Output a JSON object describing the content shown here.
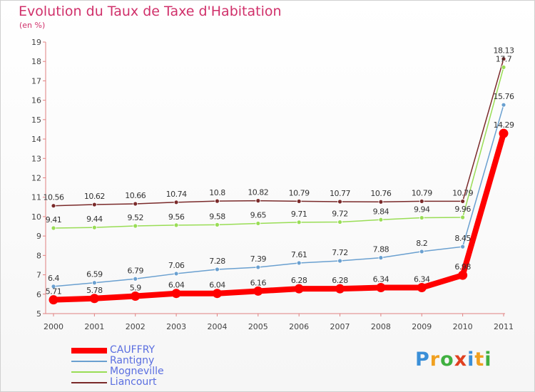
{
  "title": "Evolution du Taux de Taxe d'Habitation",
  "subtitle": "(en %)",
  "chart_data": {
    "type": "line",
    "x": [
      "2000",
      "2001",
      "2002",
      "2003",
      "2004",
      "2005",
      "2006",
      "2007",
      "2008",
      "2009",
      "2010",
      "2011"
    ],
    "ylim": [
      5,
      19
    ],
    "yticks": [
      5,
      6,
      7,
      8,
      9,
      10,
      11,
      12,
      13,
      14,
      15,
      16,
      17,
      18,
      19
    ],
    "grid": false,
    "legend_position": "bottom-left",
    "series": [
      {
        "name": "CAUFFRY",
        "color": "#ff0000",
        "values": [
          5.71,
          5.78,
          5.9,
          6.04,
          6.04,
          6.16,
          6.28,
          6.28,
          6.34,
          6.34,
          6.98,
          14.29
        ],
        "labels": [
          "5.71",
          "5.78",
          "5.9",
          "6.04",
          "6.04",
          "6.16",
          "6.28",
          "6.28",
          "6.34",
          "6.34",
          "6.98",
          "14.29"
        ]
      },
      {
        "name": "Rantigny",
        "color": "#6aa0d0",
        "values": [
          6.4,
          6.59,
          6.79,
          7.06,
          7.28,
          7.39,
          7.61,
          7.72,
          7.88,
          8.2,
          8.45,
          15.76
        ],
        "labels": [
          "6.4",
          "6.59",
          "6.79",
          "7.06",
          "7.28",
          "7.39",
          "7.61",
          "7.72",
          "7.88",
          "8.2",
          "8.45",
          "15.76"
        ]
      },
      {
        "name": "Mogneville",
        "color": "#99dd55",
        "values": [
          9.41,
          9.44,
          9.52,
          9.56,
          9.58,
          9.65,
          9.71,
          9.72,
          9.84,
          9.94,
          9.96,
          17.7
        ],
        "labels": [
          "9.41",
          "9.44",
          "9.52",
          "9.56",
          "9.58",
          "9.65",
          "9.71",
          "9.72",
          "9.84",
          "9.94",
          "9.96",
          "17.7"
        ]
      },
      {
        "name": "Liancourt",
        "color": "#7a2a2a",
        "values": [
          10.56,
          10.62,
          10.66,
          10.74,
          10.8,
          10.82,
          10.79,
          10.77,
          10.76,
          10.79,
          10.79,
          18.13
        ],
        "labels": [
          "10.56",
          "10.62",
          "10.66",
          "10.74",
          "10.8",
          "10.82",
          "10.79",
          "10.77",
          "10.76",
          "10.79",
          "10.79",
          "18.13"
        ]
      }
    ]
  },
  "legend": {
    "items": [
      {
        "label": "CAUFFRY",
        "color": "#ff0000"
      },
      {
        "label": "Rantigny",
        "color": "#6aa0d0"
      },
      {
        "label": "Mogneville",
        "color": "#99dd55"
      },
      {
        "label": "Liancourt",
        "color": "#7a2a2a"
      }
    ]
  },
  "logo": {
    "letters": [
      "P",
      "r",
      "o",
      "x",
      "i",
      "t",
      "i"
    ],
    "colors": [
      "#3a8fd8",
      "#f0a020",
      "#40b040",
      "#e04020",
      "#3a8fd8",
      "#f0a020",
      "#40b040"
    ]
  }
}
